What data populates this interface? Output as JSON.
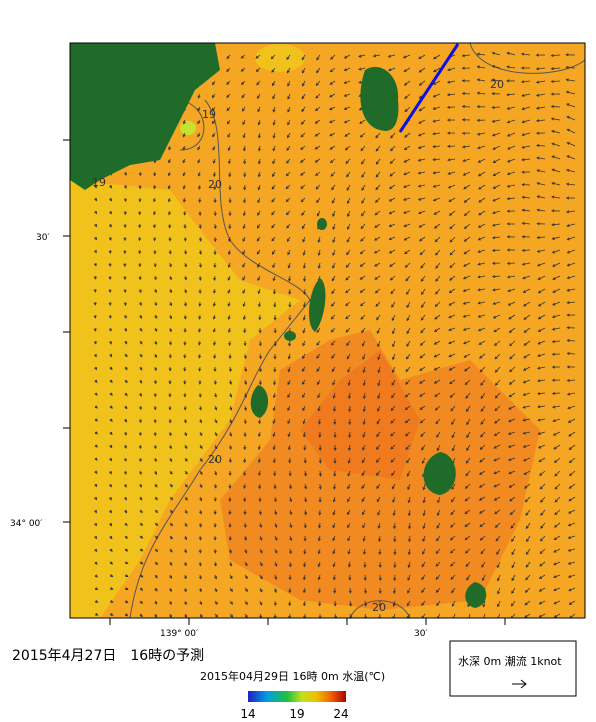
{
  "map": {
    "lat_labels": [
      "30′",
      "34° 00′"
    ],
    "lon_labels": [
      "139° 00′",
      "30′"
    ],
    "contour_labels": [
      "19",
      "19",
      "20",
      "20",
      "20",
      "20"
    ]
  },
  "caption": "2015年4月27日　16時の予測",
  "colorbar": {
    "title": "2015年04月29日 16時 0m 水温(℃)",
    "ticks": [
      14,
      19,
      24
    ]
  },
  "legend": {
    "label": "水深 0m 潮流 1knot"
  }
}
